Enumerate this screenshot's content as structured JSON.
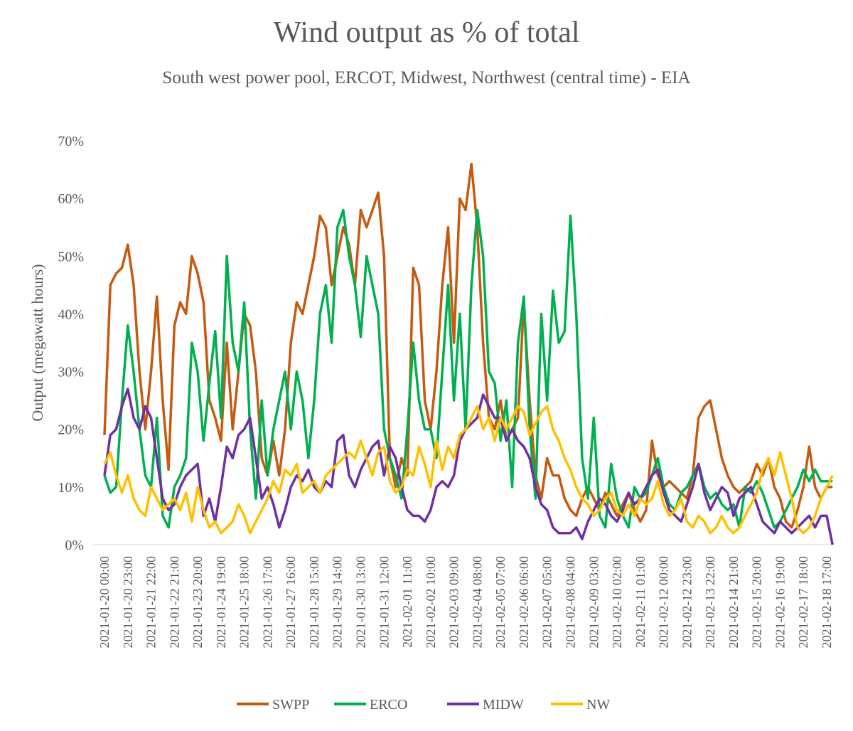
{
  "chart_data": {
    "type": "line",
    "title": "Wind output as % of total",
    "subtitle": "South west power pool, ERCOT, Midwest, Northwest (central time) - EIA",
    "y_label": "Output (megawatt hours)",
    "categories": [
      "2021-01-20 00:00",
      null,
      null,
      null,
      "2021-01-20 23:00",
      null,
      null,
      null,
      "2021-01-21 22:00",
      null,
      null,
      null,
      "2021-01-22 21:00",
      null,
      null,
      null,
      "2021-01-23 20:00",
      null,
      null,
      null,
      "2021-01-24 19:00",
      null,
      null,
      null,
      "2021-01-25 18:00",
      null,
      null,
      null,
      "2021-01-26 17:00",
      null,
      null,
      null,
      "2021-01-27 16:00",
      null,
      null,
      null,
      "2021-01-28 15:00",
      null,
      null,
      null,
      "2021-01-29 14:00",
      null,
      null,
      null,
      "2021-01-30 13:00",
      null,
      null,
      null,
      "2021-01-31 12:00",
      null,
      null,
      null,
      "2021-02-01 11:00",
      null,
      null,
      null,
      "2021-02-02 10:00",
      null,
      null,
      null,
      "2021-02-03 09:00",
      null,
      null,
      null,
      "2021-02-04 08:00",
      null,
      null,
      null,
      "2021-02-05 07:00",
      null,
      null,
      null,
      "2021-02-06 06:00",
      null,
      null,
      null,
      "2021-02-07 05:00",
      null,
      null,
      null,
      "2021-02-08 04:00",
      null,
      null,
      null,
      "2021-02-09 03:00",
      null,
      null,
      null,
      "2021-02-10 02:00",
      null,
      null,
      null,
      "2021-02-11 01:00",
      null,
      null,
      null,
      "2021-02-12 00:00",
      null,
      null,
      null,
      "2021-02-12 23:00",
      null,
      null,
      null,
      "2021-02-13 22:00",
      null,
      null,
      null,
      "2021-02-14 21:00",
      null,
      null,
      null,
      "2021-02-15 20:00",
      null,
      null,
      null,
      "2021-02-16 19:00",
      null,
      null,
      null,
      "2021-02-17 18:00",
      null,
      null,
      null,
      "2021-02-18 17:00",
      null
    ],
    "series": [
      {
        "name": "SWPP",
        "color": "#c55a11",
        "values": [
          19,
          45,
          47,
          48,
          52,
          45,
          30,
          20,
          30,
          43,
          25,
          13,
          38,
          42,
          40,
          50,
          47,
          42,
          25,
          22,
          18,
          35,
          20,
          30,
          40,
          38,
          30,
          15,
          12,
          18,
          12,
          20,
          35,
          42,
          40,
          45,
          50,
          57,
          55,
          45,
          50,
          55,
          52,
          45,
          58,
          55,
          58,
          61,
          50,
          15,
          10,
          15,
          12,
          48,
          45,
          25,
          20,
          30,
          45,
          55,
          35,
          60,
          58,
          66,
          55,
          35,
          22,
          20,
          25,
          18,
          20,
          22,
          42,
          25,
          12,
          8,
          15,
          12,
          12,
          8,
          6,
          5,
          8,
          10,
          8,
          6,
          9,
          7,
          5,
          7,
          9,
          6,
          4,
          6,
          18,
          12,
          10,
          11,
          10,
          9,
          8,
          12,
          22,
          24,
          25,
          20,
          15,
          12,
          10,
          9,
          10,
          11,
          14,
          12,
          15,
          10,
          8,
          4,
          3,
          6,
          10,
          17,
          10,
          8,
          10,
          10
        ]
      },
      {
        "name": "ERCO",
        "color": "#00b050",
        "values": [
          12,
          9,
          10,
          25,
          38,
          30,
          20,
          12,
          10,
          22,
          5,
          3,
          10,
          12,
          15,
          35,
          30,
          18,
          28,
          37,
          22,
          50,
          35,
          30,
          42,
          20,
          8,
          25,
          12,
          20,
          25,
          30,
          20,
          30,
          25,
          15,
          25,
          40,
          45,
          35,
          55,
          58,
          50,
          45,
          36,
          50,
          45,
          40,
          20,
          15,
          12,
          8,
          20,
          35,
          25,
          20,
          20,
          15,
          30,
          45,
          25,
          40,
          20,
          45,
          58,
          50,
          30,
          28,
          18,
          25,
          10,
          35,
          43,
          20,
          8,
          40,
          25,
          44,
          35,
          37,
          57,
          40,
          15,
          8,
          22,
          5,
          3,
          14,
          8,
          5,
          3,
          10,
          8,
          9,
          12,
          15,
          10,
          7,
          6,
          9,
          10,
          12,
          14,
          10,
          8,
          9,
          7,
          6,
          7,
          3,
          10,
          9,
          11,
          9,
          6,
          3,
          4,
          6,
          8,
          10,
          13,
          11,
          13,
          11,
          11,
          11
        ]
      },
      {
        "name": "MIDW",
        "color": "#7030a0",
        "values": [
          12,
          19,
          20,
          24,
          27,
          22,
          20,
          24,
          22,
          15,
          8,
          6,
          7,
          10,
          12,
          13,
          14,
          5,
          8,
          4,
          10,
          17,
          15,
          19,
          20,
          22,
          15,
          8,
          10,
          7,
          3,
          6,
          10,
          12,
          11,
          13,
          10,
          9,
          11,
          10,
          18,
          19,
          12,
          10,
          13,
          15,
          17,
          18,
          12,
          17,
          15,
          10,
          6,
          5,
          5,
          4,
          6,
          10,
          11,
          10,
          12,
          18,
          20,
          21,
          22,
          26,
          24,
          22,
          22,
          18,
          20,
          18,
          17,
          15,
          10,
          7,
          6,
          3,
          2,
          2,
          2,
          3,
          1,
          4,
          6,
          8,
          7,
          5,
          4,
          6,
          9,
          7,
          8,
          10,
          12,
          13,
          9,
          6,
          5,
          4,
          7,
          10,
          14,
          9,
          6,
          8,
          10,
          9,
          5,
          8,
          9,
          10,
          7,
          4,
          3,
          2,
          4,
          3,
          2,
          3,
          4,
          5,
          3,
          5,
          5,
          0
        ]
      },
      {
        "name": "NW",
        "color": "#ffc000",
        "values": [
          14,
          16,
          12,
          9,
          12,
          8,
          6,
          5,
          10,
          8,
          6,
          7,
          8,
          6,
          9,
          4,
          10,
          6,
          3,
          4,
          2,
          3,
          4,
          7,
          5,
          2,
          4,
          6,
          8,
          11,
          9,
          13,
          12,
          14,
          9,
          10,
          11,
          9,
          12,
          13,
          14,
          15,
          16,
          15,
          18,
          15,
          12,
          16,
          17,
          11,
          9,
          10,
          13,
          12,
          17,
          14,
          10,
          18,
          13,
          17,
          15,
          19,
          20,
          22,
          24,
          20,
          22,
          18,
          22,
          20,
          22,
          24,
          23,
          19,
          21,
          23,
          24,
          20,
          18,
          15,
          13,
          10,
          8,
          7,
          5,
          6,
          8,
          9,
          6,
          5,
          7,
          5,
          8,
          7,
          8,
          11,
          7,
          5,
          6,
          8,
          4,
          3,
          5,
          4,
          2,
          3,
          5,
          3,
          2,
          3,
          5,
          7,
          9,
          13,
          15,
          12,
          16,
          12,
          8,
          3,
          2,
          3,
          5,
          8,
          10,
          12
        ]
      }
    ],
    "ylim": [
      0,
      70
    ],
    "yticks": [
      {
        "value": 0,
        "label": "0%"
      },
      {
        "value": 10,
        "label": "10%"
      },
      {
        "value": 20,
        "label": "20%"
      },
      {
        "value": 30,
        "label": "30%"
      },
      {
        "value": 40,
        "label": "40%"
      },
      {
        "value": 50,
        "label": "50%"
      },
      {
        "value": 60,
        "label": "60%"
      },
      {
        "value": 70,
        "label": "70%"
      }
    ],
    "legend": "bottom"
  }
}
